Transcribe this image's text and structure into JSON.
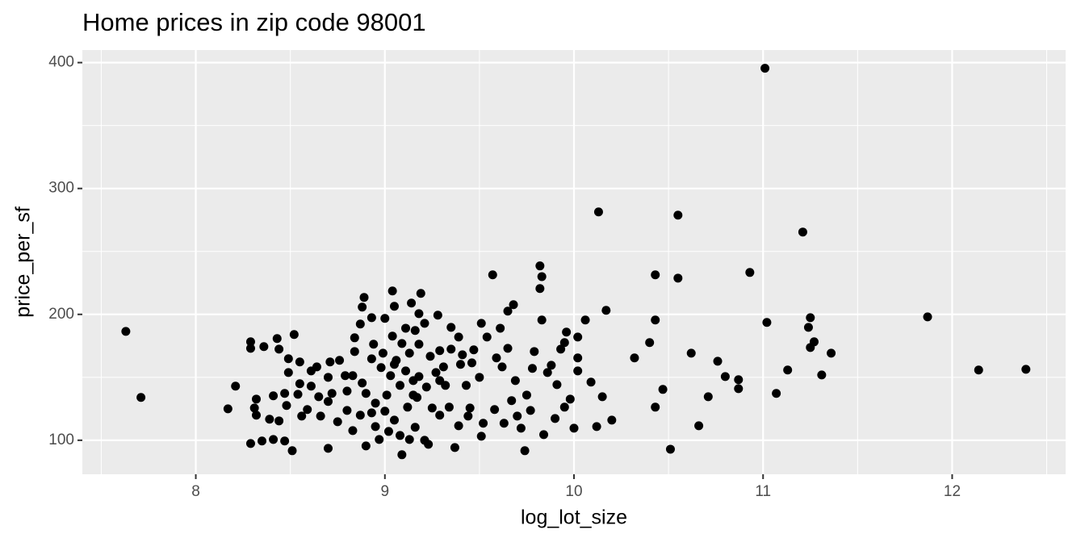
{
  "chart_data": {
    "type": "scatter",
    "title": "Home prices in zip code 98001",
    "x_label": "log_lot_size",
    "y_label": "price_per_sf",
    "xlim": [
      7.4,
      12.6
    ],
    "ylim": [
      73,
      410
    ],
    "xticks": [
      8,
      9,
      10,
      11,
      12
    ],
    "yticks": [
      100,
      200,
      300,
      400
    ],
    "grid": true,
    "color": "#000000",
    "x": [
      7.63,
      7.71,
      11.01,
      10.13,
      10.55,
      11.21,
      11.87,
      12.14,
      12.39,
      10.93,
      10.43,
      10.55,
      9.82,
      9.83,
      9.82,
      9.57,
      10.17,
      11.02,
      11.25,
      11.24,
      11.27,
      11.25,
      11.36,
      11.31,
      11.13,
      11.07,
      10.76,
      10.8,
      10.87,
      10.87,
      10.62,
      10.71,
      10.66,
      10.51,
      10.47,
      10.43,
      10.32,
      10.4,
      10.43,
      10.2,
      10.12,
      10.15,
      10.09,
      10.02,
      10.02,
      10.02,
      10.06,
      9.96,
      9.95,
      10.0,
      9.98,
      9.95,
      9.9,
      9.84,
      9.83,
      9.74,
      9.04,
      9.19,
      8.89,
      8.88,
      9.68,
      9.65,
      9.51,
      9.61,
      9.5,
      9.51,
      9.37,
      9.09,
      8.7,
      8.51,
      8.29,
      8.35,
      8.41,
      8.47,
      8.17,
      8.21,
      8.29,
      8.29,
      8.36,
      8.43,
      8.44,
      8.52,
      8.55,
      8.49,
      8.49,
      8.61,
      8.71,
      8.76,
      8.84,
      8.93,
      9.0,
      8.94,
      9.04,
      9.11,
      9.18,
      9.28,
      9.35,
      9.39,
      9.41,
      9.4,
      9.43,
      9.45,
      9.44,
      9.39,
      9.29,
      9.23,
      9.21,
      9.13,
      8.97,
      8.9,
      8.83,
      8.75,
      8.66,
      8.56,
      8.44,
      8.39,
      8.32,
      8.31,
      8.32,
      8.41,
      8.47,
      8.48,
      8.59,
      8.7,
      8.72,
      8.8,
      8.83,
      8.88,
      8.9,
      8.95,
      9.0,
      9.05,
      9.12,
      9.15,
      9.08,
      9.03,
      8.98,
      8.93,
      8.99,
      9.06,
      9.13,
      9.18,
      9.24,
      9.31,
      9.29,
      9.22,
      9.17,
      9.25,
      9.34,
      9.59,
      9.65,
      9.62,
      9.69,
      9.75,
      9.77,
      9.7,
      9.58,
      9.67,
      9.79,
      9.78,
      9.86,
      9.91,
      9.88,
      9.93,
      9.54,
      9.47,
      9.46,
      9.32,
      9.15,
      8.95,
      8.87,
      8.8,
      8.79,
      8.7,
      8.64,
      8.61,
      8.55,
      8.65,
      8.54,
      8.84,
      8.87,
      9.05,
      9.14,
      9.16,
      9.21,
      9.09,
      9.01,
      8.93,
      9.02,
      9.08,
      9.16,
      9.05,
      9.11,
      9.18,
      9.27,
      9.29,
      9.35,
      9.63,
      9.52,
      9.72
    ],
    "values": [
      186.5,
      134,
      395.5,
      281.4,
      278.8,
      265.4,
      198,
      155.8,
      156.4,
      233.3,
      231.4,
      228.8,
      238.5,
      230,
      220.5,
      231.4,
      203.2,
      193.6,
      197.4,
      189.7,
      178.2,
      173.7,
      169.2,
      151.9,
      155.8,
      137.2,
      162.8,
      150.6,
      148.1,
      141,
      169.2,
      134.6,
      111.5,
      92.9,
      140.4,
      126.3,
      165.4,
      177.6,
      195.5,
      116,
      110.9,
      134.6,
      146.2,
      165.4,
      155.1,
      182,
      195.5,
      185.9,
      177.6,
      109.6,
      132.7,
      126.3,
      117.3,
      104.5,
      195.5,
      91.7,
      218.6,
      216.7,
      213.5,
      205.8,
      207.7,
      202.6,
      192.9,
      189,
      150,
      103.2,
      94.2,
      88.5,
      93.6,
      91.7,
      97.4,
      99.4,
      100.6,
      99.4,
      125,
      143,
      178.2,
      173,
      174.4,
      180.8,
      172.4,
      184,
      162.2,
      164.8,
      153.8,
      143,
      162.2,
      163.5,
      181.4,
      197.4,
      196.8,
      176.3,
      182.7,
      189,
      200.6,
      199.4,
      189.7,
      182,
      167.9,
      160.3,
      143.6,
      125.6,
      119.2,
      111.5,
      119.9,
      96.8,
      100,
      100.6,
      100.6,
      95.5,
      107.7,
      114.7,
      119.2,
      119.2,
      115.4,
      116.7,
      119.9,
      125.6,
      132.7,
      135.3,
      137.2,
      127.6,
      124.4,
      130.8,
      137.2,
      139.1,
      151.3,
      145.5,
      137.2,
      129.5,
      123.1,
      116,
      126.3,
      135.9,
      143.6,
      151.3,
      157.7,
      164.7,
      169.2,
      163.5,
      169.2,
      176.3,
      166.7,
      158.3,
      147.4,
      142.3,
      134,
      125.6,
      126.3,
      165.4,
      173,
      158.3,
      147.4,
      135.9,
      123.7,
      119.2,
      124.4,
      131.5,
      170.5,
      157.1,
      153.8,
      144.2,
      159.6,
      172.4,
      182,
      171.8,
      161.5,
      143.6,
      147.4,
      110.9,
      119.9,
      123.7,
      151.3,
      150,
      158.3,
      155.1,
      144.9,
      134.6,
      136.5,
      170.5,
      192.3,
      206.4,
      209,
      187.2,
      192.9,
      176.9,
      135.9,
      121.8,
      107,
      103.8,
      110.3,
      160.3,
      155.1,
      150.6,
      153.8,
      171.2,
      172.4,
      113.5,
      113.5,
      109.6
    ]
  }
}
